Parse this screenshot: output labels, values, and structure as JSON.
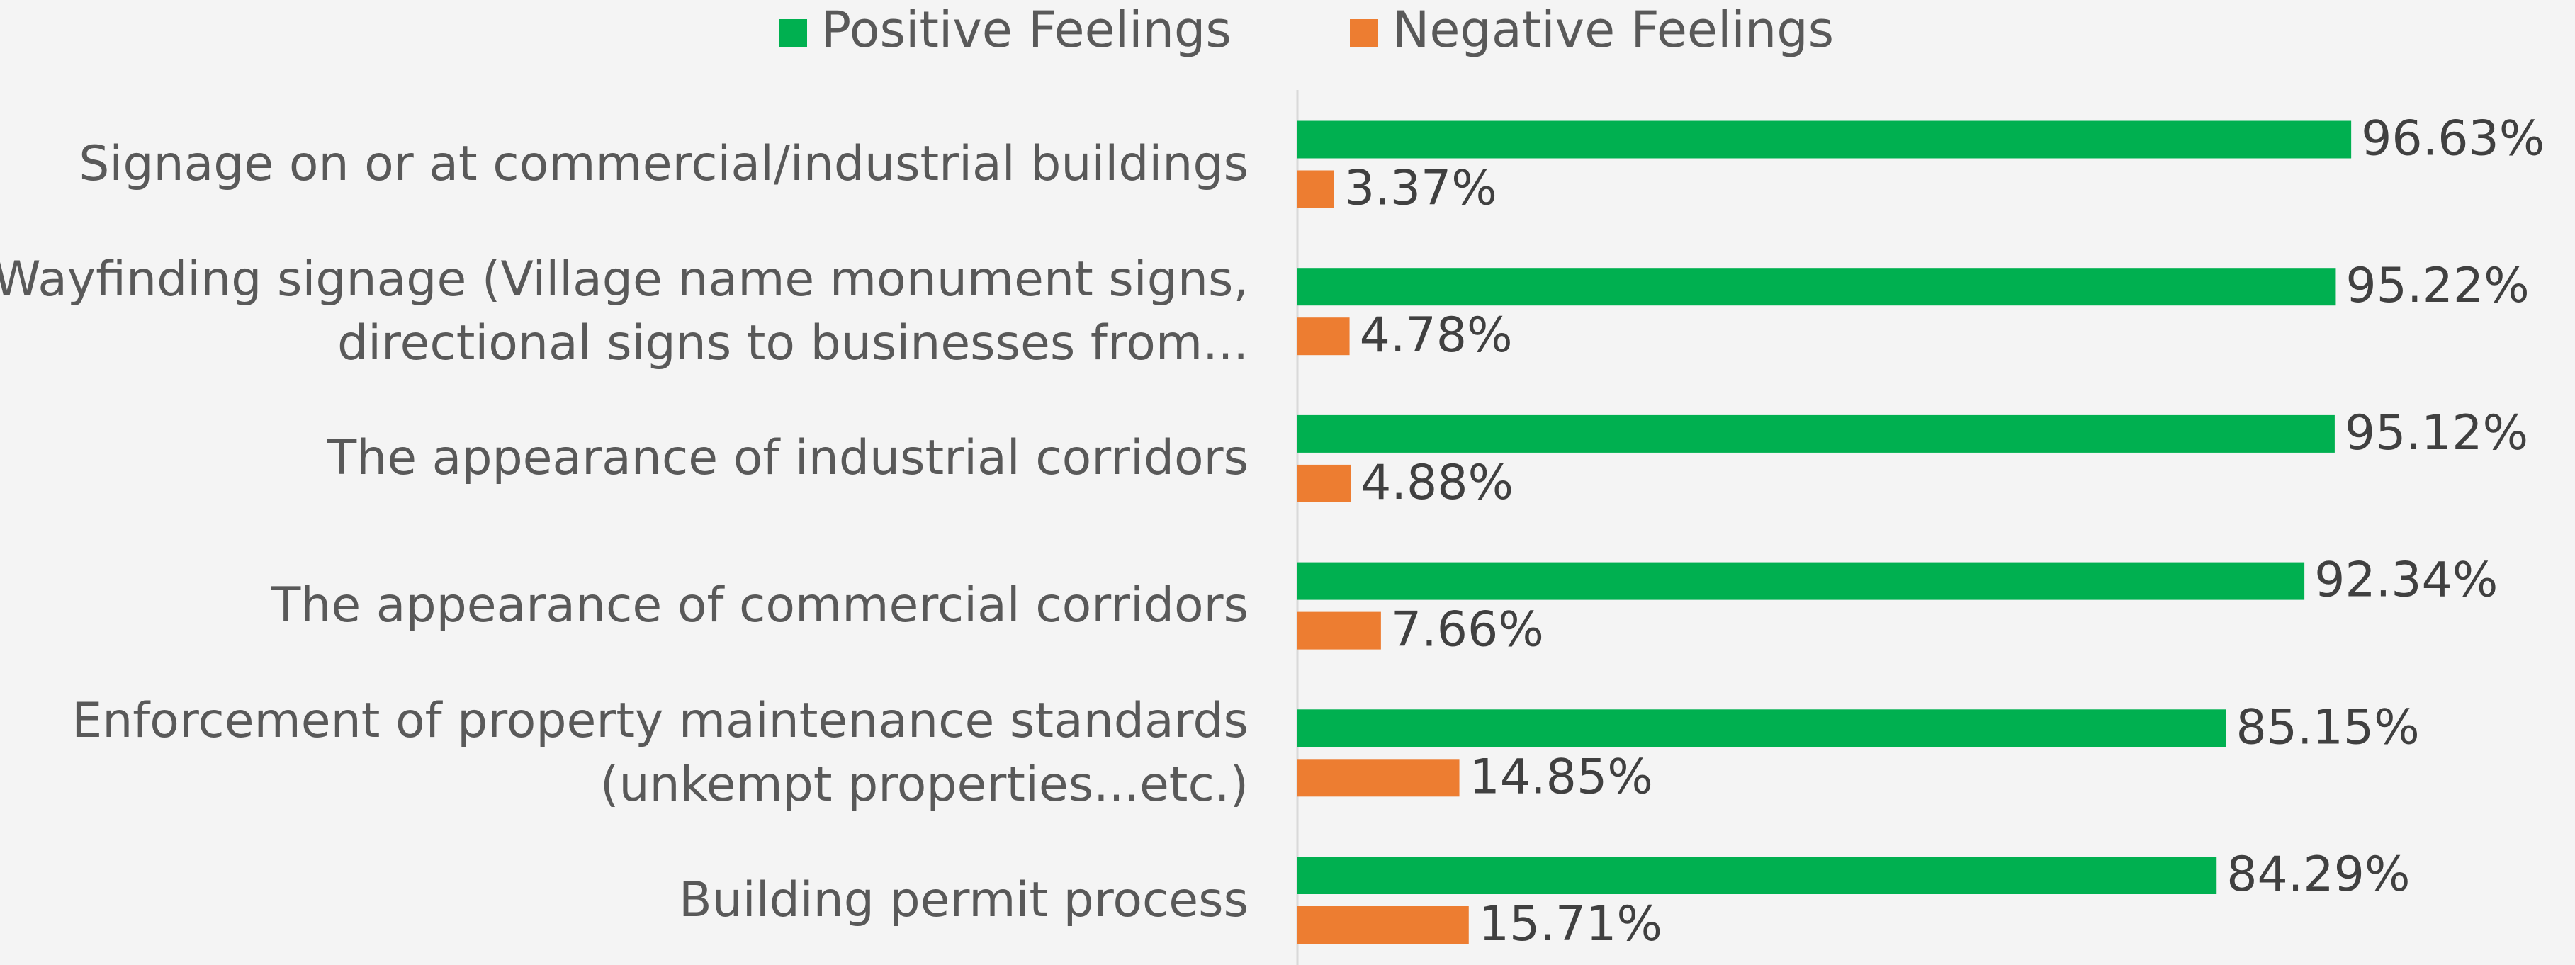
{
  "chart_data": {
    "type": "bar",
    "orientation": "horizontal",
    "categories": [
      "Signage on or at commercial/industrial buildings",
      "Wayfinding signage (Village name monument signs, directional signs to businesses from...",
      "The appearance of industrial corridors",
      "The appearance of commercial corridors",
      "Enforcement of property maintenance standards (unkempt properties...etc.)",
      "Building permit process"
    ],
    "series": [
      {
        "name": "Positive Feelings",
        "color": "#00b050",
        "values": [
          96.63,
          95.22,
          95.12,
          92.34,
          85.15,
          84.29
        ],
        "value_labels": [
          "96.63%",
          "95.22%",
          "95.12%",
          "92.34%",
          "85.15%",
          "84.29%"
        ]
      },
      {
        "name": "Negative Feelings",
        "color": "#ed7d31",
        "values": [
          3.37,
          4.78,
          4.88,
          7.66,
          14.85,
          15.71
        ],
        "value_labels": [
          "3.37%",
          "4.78%",
          "4.88%",
          "7.66%",
          "14.85%",
          "15.71%"
        ]
      }
    ],
    "xlim": [
      0,
      100
    ],
    "legend": "top"
  }
}
